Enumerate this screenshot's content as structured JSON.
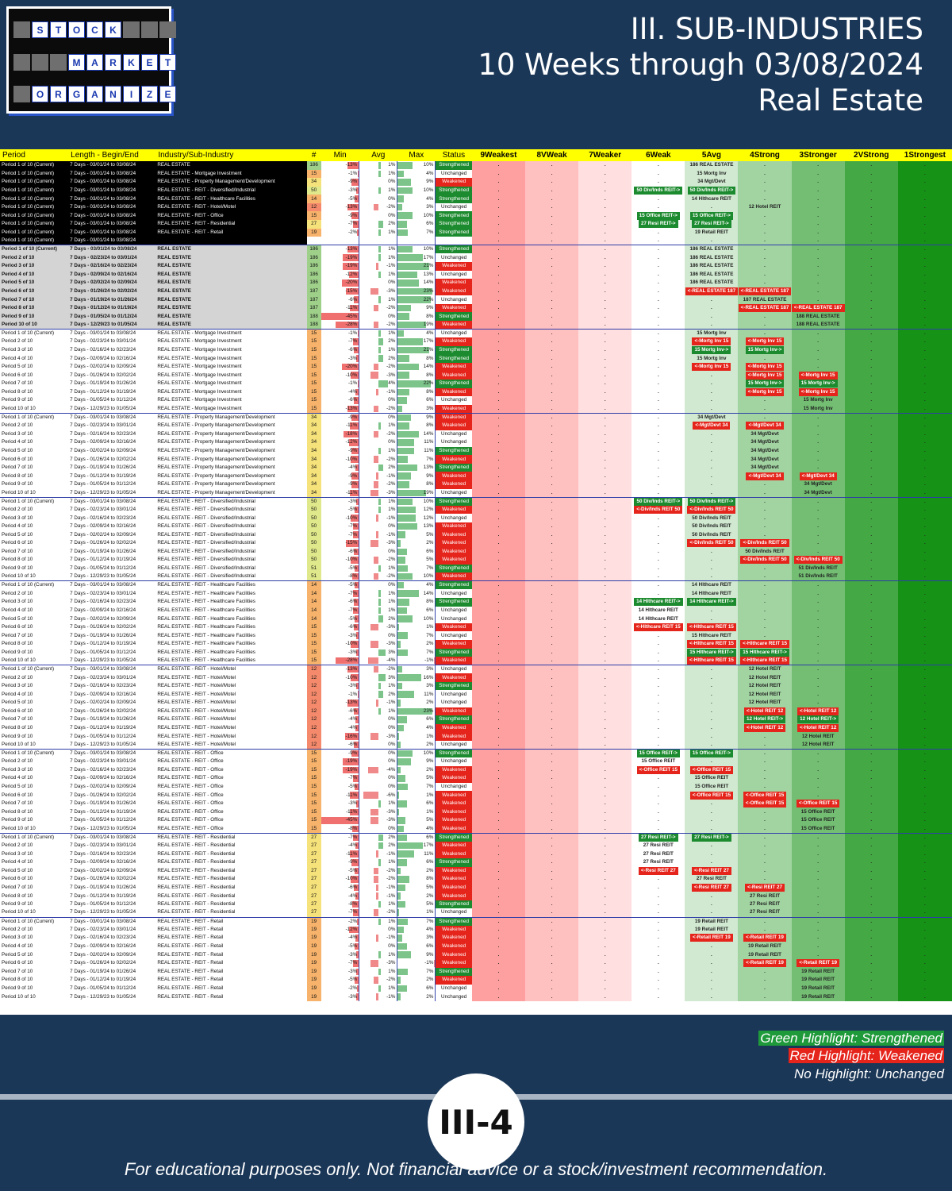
{
  "logo": {
    "rows": [
      {
        "word": "STOCK",
        "offset": 1
      },
      {
        "word": "MARKET",
        "offset": 3
      },
      {
        "word": "ORGANIZER",
        "offset": 1
      }
    ]
  },
  "header": {
    "line1": "III. SUB-INDUSTRIES",
    "line2": "10 Weeks through 03/08/2024",
    "line3": "Real Estate"
  },
  "columns": {
    "period": "Period",
    "length": "Length - Begin/End",
    "industry": "Industry/Sub-Industry",
    "count": "#",
    "min": "Min",
    "avg": "Avg",
    "max": "Max",
    "status": "Status",
    "levels": [
      "9Weakest",
      "8VWeak",
      "7Weaker",
      "6Weak",
      "5Avg",
      "4Strong",
      "3Stronger",
      "2VStrong",
      "1Strongest"
    ]
  },
  "colors": {
    "strengthened": "#1c8a2e",
    "weakened": "#e5241b",
    "header": "#ffff00"
  },
  "ranges": [
    "7 Days - 03/01/24 to 03/08/24",
    "7 Days - 02/23/24 to 03/01/24",
    "7 Days - 02/16/24 to 02/23/24",
    "7 Days - 02/09/24 to 02/16/24",
    "7 Days - 02/02/24 to 02/09/24",
    "7 Days - 01/26/24 to 02/02/24",
    "7 Days - 01/19/24 to 01/26/24",
    "7 Days - 01/12/24 to 01/19/24",
    "7 Days - 01/05/24 to 01/12/24",
    "7 Days - 12/29/23 to 01/05/24"
  ],
  "current_block": {
    "period": "Period 1 of 10 (Current)",
    "rows": [
      {
        "ind": "REAL ESTATE",
        "n": 186,
        "min": "-13%",
        "avg": "1%",
        "max": "10%",
        "st": "S",
        "from": 5,
        "to": 5,
        "label": "186 REAL ESTATE"
      },
      {
        "ind": "REAL ESTATE - Mortgage Investment",
        "n": 15,
        "min": "-1%",
        "avg": "1%",
        "max": "4%",
        "st": "U",
        "from": 5,
        "to": 5,
        "label": "15 Mortg Inv"
      },
      {
        "ind": "REAL ESTATE - Property Management/Development",
        "n": 34,
        "min": "-9%",
        "avg": "0%",
        "max": "9%",
        "st": "W",
        "from": 5,
        "to": 5,
        "label": "34 Mgt/Devt"
      },
      {
        "ind": "REAL ESTATE - REIT - Diversified/Industrial",
        "n": 50,
        "min": "-3%",
        "avg": "1%",
        "max": "10%",
        "st": "S",
        "from": 6,
        "to": 5,
        "label": "50 Div/Inds REIT"
      },
      {
        "ind": "REAL ESTATE - REIT - Healthcare Facilities",
        "n": 14,
        "min": "-5%",
        "avg": "0%",
        "max": "4%",
        "st": "S",
        "from": 5,
        "to": 5,
        "label": "14 Hlthcare REIT"
      },
      {
        "ind": "REAL ESTATE - REIT - Hotel/Motel",
        "n": 12,
        "min": "-13%",
        "avg": "-2%",
        "max": "3%",
        "st": "U",
        "from": 4,
        "to": 4,
        "label": "12 Hotel REIT"
      },
      {
        "ind": "REAL ESTATE - REIT - Office",
        "n": 15,
        "min": "-9%",
        "avg": "0%",
        "max": "10%",
        "st": "S",
        "from": 6,
        "to": 5,
        "label": "15 Office REIT"
      },
      {
        "ind": "REAL ESTATE - REIT - Residential",
        "n": 27,
        "min": "-7%",
        "avg": "2%",
        "max": "6%",
        "st": "S",
        "from": 6,
        "to": 5,
        "label": "27 Resi REIT"
      },
      {
        "ind": "REAL ESTATE - REIT - Retail",
        "n": 19,
        "min": "-2%",
        "avg": "1%",
        "max": "7%",
        "st": "S",
        "from": 5,
        "to": 5,
        "label": "19 Retail REIT"
      },
      {
        "ind": "",
        "n": "",
        "min": "",
        "avg": "",
        "max": "",
        "st": "",
        "from": 0,
        "to": 0,
        "label": ""
      }
    ]
  },
  "groups": [
    {
      "ind": "REAL ESTATE",
      "style": "gry",
      "rows": [
        [
          186,
          "-13%",
          "1%",
          "10%",
          "S",
          5,
          5,
          "186 REAL ESTATE"
        ],
        [
          186,
          "-19%",
          "1%",
          "17%",
          "U",
          5,
          5,
          "186 REAL ESTATE"
        ],
        [
          186,
          "-19%",
          "-1%",
          "21%",
          "W",
          5,
          5,
          "186 REAL ESTATE"
        ],
        [
          186,
          "-12%",
          "1%",
          "13%",
          "U",
          5,
          5,
          "186 REAL ESTATE"
        ],
        [
          186,
          "-20%",
          "0%",
          "14%",
          "W",
          5,
          5,
          "186 REAL ESTATE"
        ],
        [
          187,
          "-15%",
          "-3%",
          "23%",
          "W",
          4,
          5,
          "REAL ESTATE 187"
        ],
        [
          187,
          "-6%",
          "1%",
          "22%",
          "U",
          4,
          4,
          "187 REAL ESTATE"
        ],
        [
          187,
          "-11%",
          "-2%",
          "9%",
          "W",
          3,
          4,
          "REAL ESTATE 187"
        ],
        [
          188,
          "-45%",
          "0%",
          "8%",
          "S",
          3,
          3,
          "188 REAL ESTATE"
        ],
        [
          188,
          "-28%",
          "-2%",
          "19%",
          "W",
          3,
          3,
          "188 REAL ESTATE"
        ]
      ]
    },
    {
      "ind": "REAL ESTATE - Mortgage Investment",
      "rows": [
        [
          15,
          "-1%",
          "1%",
          "4%",
          "U",
          5,
          5,
          "15 Mortg Inv"
        ],
        [
          15,
          "-7%",
          "2%",
          "17%",
          "W",
          4,
          5,
          "Mortg Inv 15"
        ],
        [
          15,
          "-6%",
          "1%",
          "21%",
          "S",
          5,
          4,
          "15 Mortg Inv"
        ],
        [
          15,
          "-3%",
          "2%",
          "8%",
          "S",
          5,
          5,
          "15 Mortg Inv"
        ],
        [
          15,
          "-20%",
          "-2%",
          "14%",
          "W",
          4,
          5,
          "Mortg Inv 15"
        ],
        [
          15,
          "-10%",
          "-3%",
          "8%",
          "W",
          3,
          4,
          "Mortg Inv 15"
        ],
        [
          15,
          "-1%",
          "4%",
          "22%",
          "S",
          4,
          3,
          "15 Mortg Inv"
        ],
        [
          15,
          "-4%",
          "-1%",
          "8%",
          "W",
          3,
          4,
          "Mortg Inv 15"
        ],
        [
          15,
          "-6%",
          "0%",
          "6%",
          "U",
          3,
          3,
          "15 Mortg Inv"
        ],
        [
          15,
          "-13%",
          "-2%",
          "3%",
          "W",
          3,
          3,
          "15 Mortg Inv"
        ]
      ]
    },
    {
      "ind": "REAL ESTATE - Property Management/Development",
      "rows": [
        [
          34,
          "-9%",
          "0%",
          "9%",
          "W",
          5,
          5,
          "34 Mgt/Devt"
        ],
        [
          34,
          "-11%",
          "1%",
          "8%",
          "W",
          4,
          5,
          "Mgt/Devt 34"
        ],
        [
          34,
          "-18%",
          "-2%",
          "14%",
          "U",
          4,
          4,
          "34 Mgt/Devt"
        ],
        [
          34,
          "-12%",
          "0%",
          "11%",
          "U",
          4,
          4,
          "34 Mgt/Devt"
        ],
        [
          34,
          "-9%",
          "1%",
          "11%",
          "S",
          4,
          4,
          "34 Mgt/Devt"
        ],
        [
          34,
          "-10%",
          "-2%",
          "7%",
          "W",
          4,
          4,
          "34 Mgt/Devt"
        ],
        [
          34,
          "-4%",
          "2%",
          "13%",
          "S",
          4,
          4,
          "34 Mgt/Devt"
        ],
        [
          34,
          "-9%",
          "-1%",
          "9%",
          "W",
          3,
          4,
          "Mgt/Devt 34"
        ],
        [
          34,
          "-9%",
          "-2%",
          "8%",
          "W",
          3,
          3,
          "34 Mgt/Devt"
        ],
        [
          34,
          "-11%",
          "-3%",
          "19%",
          "U",
          3,
          3,
          "34 Mgt/Devt"
        ]
      ]
    },
    {
      "ind": "REAL ESTATE - REIT - Diversified/Industrial",
      "rows": [
        [
          50,
          "-3%",
          "1%",
          "10%",
          "S",
          6,
          5,
          "50 Div/Inds REIT"
        ],
        [
          50,
          "-5%",
          "1%",
          "12%",
          "W",
          5,
          6,
          "Div/Inds REIT 50"
        ],
        [
          50,
          "-10%",
          "-1%",
          "12%",
          "U",
          5,
          5,
          "50 Div/Inds REIT"
        ],
        [
          50,
          "-7%",
          "0%",
          "13%",
          "W",
          5,
          5,
          "50 Div/Inds REIT"
        ],
        [
          50,
          "-7%",
          "-1%",
          "5%",
          "W",
          5,
          5,
          "50 Div/Inds REIT"
        ],
        [
          50,
          "-15%",
          "-3%",
          "2%",
          "W",
          4,
          5,
          "Div/Inds REIT 50"
        ],
        [
          50,
          "-6%",
          "0%",
          "6%",
          "W",
          4,
          4,
          "50 Div/Inds REIT"
        ],
        [
          50,
          "-10%",
          "-2%",
          "5%",
          "W",
          3,
          4,
          "Div/Inds REIT 50"
        ],
        [
          51,
          "-5%",
          "1%",
          "7%",
          "S",
          3,
          3,
          "51 Div/Inds REIT"
        ],
        [
          51,
          "-8%",
          "-2%",
          "10%",
          "W",
          3,
          3,
          "51 Div/Inds REIT"
        ]
      ]
    },
    {
      "ind": "REAL ESTATE - REIT - Healthcare Facilities",
      "rows": [
        [
          14,
          "-5%",
          "0%",
          "4%",
          "S",
          5,
          5,
          "14 Hlthcare REIT"
        ],
        [
          14,
          "-7%",
          "1%",
          "14%",
          "U",
          5,
          5,
          "14 Hlthcare REIT"
        ],
        [
          14,
          "-6%",
          "1%",
          "8%",
          "S",
          6,
          5,
          "14 Hlthcare REIT"
        ],
        [
          14,
          "-7%",
          "1%",
          "6%",
          "U",
          6,
          6,
          "14 Hlthcare REIT"
        ],
        [
          14,
          "-5%",
          "2%",
          "10%",
          "U",
          6,
          6,
          "14 Hlthcare REIT"
        ],
        [
          15,
          "-6%",
          "-3%",
          "1%",
          "W",
          5,
          6,
          "Hlthcare REIT 15"
        ],
        [
          15,
          "-3%",
          "0%",
          "7%",
          "U",
          5,
          5,
          "15 Hlthcare REIT"
        ],
        [
          15,
          "-10%",
          "-3%",
          "2%",
          "W",
          4,
          5,
          "Hlthcare REIT 15"
        ],
        [
          15,
          "-3%",
          "3%",
          "7%",
          "S",
          5,
          4,
          "15 Hlthcare REIT"
        ],
        [
          15,
          "-28%",
          "-4%",
          "-1%",
          "W",
          4,
          5,
          "Hlthcare REIT 15"
        ]
      ]
    },
    {
      "ind": "REAL ESTATE - REIT - Hotel/Motel",
      "rows": [
        [
          12,
          "-13%",
          "-2%",
          "3%",
          "U",
          4,
          4,
          "12 Hotel REIT"
        ],
        [
          12,
          "-10%",
          "3%",
          "16%",
          "W",
          4,
          4,
          "12 Hotel REIT"
        ],
        [
          12,
          "-3%",
          "1%",
          "3%",
          "S",
          4,
          4,
          "12 Hotel REIT"
        ],
        [
          12,
          "-1%",
          "2%",
          "11%",
          "U",
          4,
          4,
          "12 Hotel REIT"
        ],
        [
          12,
          "-13%",
          "-1%",
          "2%",
          "U",
          4,
          4,
          "12 Hotel REIT"
        ],
        [
          12,
          "-6%",
          "1%",
          "23%",
          "W",
          3,
          4,
          "Hotel REIT 12"
        ],
        [
          12,
          "-4%",
          "0%",
          "6%",
          "S",
          4,
          3,
          "12 Hotel REIT"
        ],
        [
          12,
          "-4%",
          "0%",
          "4%",
          "W",
          3,
          4,
          "Hotel REIT 12"
        ],
        [
          12,
          "-16%",
          "-3%",
          "1%",
          "W",
          3,
          3,
          "12 Hotel REIT"
        ],
        [
          12,
          "-6%",
          "0%",
          "2%",
          "U",
          3,
          3,
          "12 Hotel REIT"
        ]
      ]
    },
    {
      "ind": "REAL ESTATE - REIT - Office",
      "rows": [
        [
          15,
          "-9%",
          "0%",
          "10%",
          "S",
          6,
          5,
          "15 Office REIT"
        ],
        [
          15,
          "-19%",
          "0%",
          "9%",
          "U",
          6,
          6,
          "15 Office REIT"
        ],
        [
          15,
          "-19%",
          "-4%",
          "2%",
          "W",
          5,
          6,
          "Office REIT 15"
        ],
        [
          15,
          "-7%",
          "0%",
          "5%",
          "W",
          5,
          5,
          "15 Office REIT"
        ],
        [
          15,
          "-5%",
          "0%",
          "7%",
          "U",
          5,
          5,
          "15 Office REIT"
        ],
        [
          15,
          "-11%",
          "-6%",
          "1%",
          "W",
          4,
          5,
          "Office REIT 15"
        ],
        [
          15,
          "-3%",
          "1%",
          "6%",
          "W",
          3,
          4,
          "Office REIT 15"
        ],
        [
          15,
          "-11%",
          "-3%",
          "1%",
          "W",
          3,
          3,
          "15 Office REIT"
        ],
        [
          15,
          "-45%",
          "-3%",
          "5%",
          "W",
          3,
          3,
          "15 Office REIT"
        ],
        [
          15,
          "-8%",
          "0%",
          "4%",
          "W",
          3,
          3,
          "15 Office REIT"
        ]
      ]
    },
    {
      "ind": "REAL ESTATE - REIT - Residential",
      "rows": [
        [
          27,
          "-7%",
          "2%",
          "6%",
          "S",
          6,
          5,
          "27 Resi REIT"
        ],
        [
          27,
          "-4%",
          "2%",
          "17%",
          "W",
          6,
          6,
          "27 Resi REIT"
        ],
        [
          27,
          "-11%",
          "-1%",
          "11%",
          "W",
          6,
          6,
          "27 Resi REIT"
        ],
        [
          27,
          "-9%",
          "1%",
          "6%",
          "S",
          6,
          6,
          "27 Resi REIT"
        ],
        [
          27,
          "-5%",
          "-2%",
          "2%",
          "W",
          5,
          6,
          "Resi REIT 27"
        ],
        [
          27,
          "-10%",
          "-2%",
          "8%",
          "W",
          5,
          5,
          "27 Resi REIT"
        ],
        [
          27,
          "-6%",
          "-1%",
          "5%",
          "W",
          4,
          5,
          "Resi REIT 27"
        ],
        [
          27,
          "-4%",
          "-1%",
          "2%",
          "W",
          4,
          4,
          "27 Resi REIT"
        ],
        [
          27,
          "-8%",
          "1%",
          "5%",
          "S",
          4,
          4,
          "27 Resi REIT"
        ],
        [
          27,
          "-7%",
          "-2%",
          "1%",
          "U",
          4,
          4,
          "27 Resi REIT"
        ]
      ]
    },
    {
      "ind": "REAL ESTATE - REIT - Retail",
      "rows": [
        [
          19,
          "-2%",
          "1%",
          "7%",
          "S",
          5,
          5,
          "19 Retail REIT"
        ],
        [
          19,
          "-12%",
          "0%",
          "4%",
          "W",
          5,
          5,
          "19 Retail REIT"
        ],
        [
          19,
          "-4%",
          "-1%",
          "3%",
          "W",
          4,
          5,
          "Retail REIT 19"
        ],
        [
          19,
          "-5%",
          "0%",
          "6%",
          "W",
          4,
          4,
          "19 Retail REIT"
        ],
        [
          19,
          "-3%",
          "1%",
          "9%",
          "W",
          4,
          4,
          "19 Retail REIT"
        ],
        [
          19,
          "-7%",
          "-3%",
          "-1%",
          "W",
          3,
          4,
          "Retail REIT 19"
        ],
        [
          19,
          "-3%",
          "1%",
          "7%",
          "S",
          3,
          3,
          "19 Retail REIT"
        ],
        [
          19,
          "-5%",
          "-2%",
          "2%",
          "W",
          3,
          3,
          "19 Retail REIT"
        ],
        [
          19,
          "-2%",
          "1%",
          "6%",
          "U",
          3,
          3,
          "19 Retail REIT"
        ],
        [
          19,
          "-3%",
          "-1%",
          "2%",
          "U",
          3,
          3,
          "19 Retail REIT"
        ]
      ]
    }
  ],
  "status_labels": {
    "S": "Strengthened",
    "W": "Weakened",
    "U": "Unchanged"
  },
  "legend": {
    "green": "Green Highlight: Strengthened",
    "red": "Red Highlight: Weakened",
    "none": "No Highlight: Unchanged"
  },
  "badge": "III-4",
  "disclaimer": "For educational purposes only. Not financial advice or a stock/investment recommendation."
}
